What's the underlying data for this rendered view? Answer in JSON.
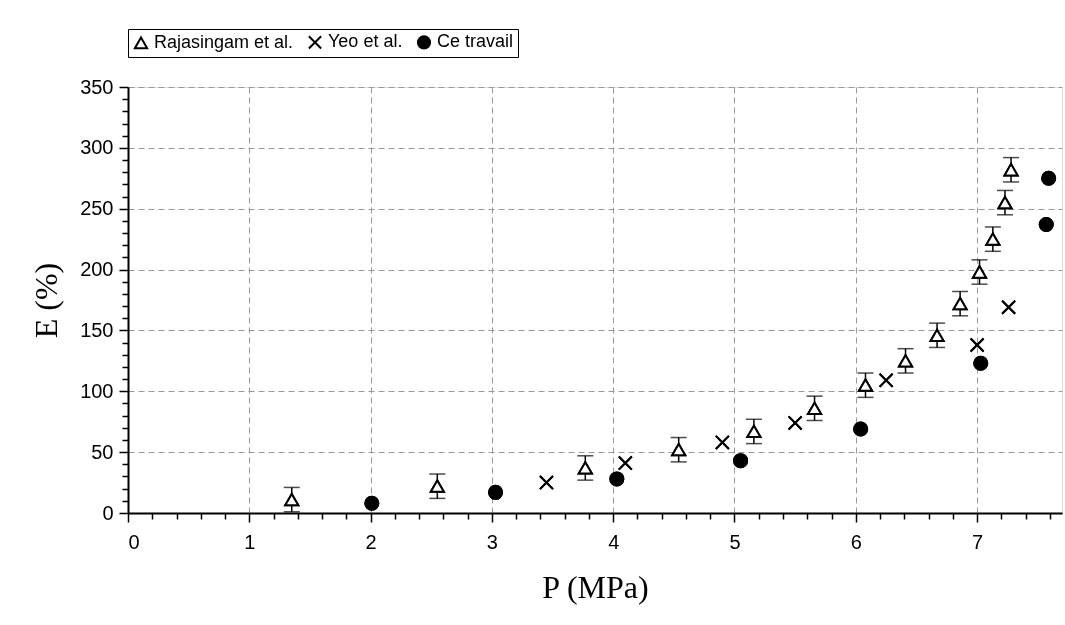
{
  "chart_data": {
    "type": "scatter",
    "xlabel": "P (MPa)",
    "ylabel": "E (%)",
    "xlim": [
      0,
      7.7
    ],
    "ylim": [
      0,
      350
    ],
    "grid": true,
    "legend": "top",
    "xticks": [
      0,
      {
        "value": 0.2,
        "label": null
      },
      {
        "value": 0.4,
        "label": null
      },
      {
        "value": 0.6,
        "label": null
      },
      {
        "value": 0.8,
        "label": null
      },
      1,
      {
        "value": 1.2,
        "label": null
      },
      {
        "value": 1.4,
        "label": null
      },
      {
        "value": 1.6,
        "label": null
      },
      {
        "value": 1.8,
        "label": null
      },
      2,
      {
        "value": 2.2,
        "label": null
      },
      {
        "value": 2.4,
        "label": null
      },
      {
        "value": 2.6,
        "label": null
      },
      {
        "value": 2.8,
        "label": null
      },
      3,
      {
        "value": 3.2,
        "label": null
      },
      {
        "value": 3.4,
        "label": null
      },
      {
        "value": 3.6,
        "label": null
      },
      {
        "value": 3.8,
        "label": null
      },
      4,
      {
        "value": 4.2,
        "label": null
      },
      {
        "value": 4.4,
        "label": null
      },
      {
        "value": 4.6,
        "label": null
      },
      {
        "value": 4.8,
        "label": null
      },
      5,
      {
        "value": 5.2,
        "label": null
      },
      {
        "value": 5.4,
        "label": null
      },
      {
        "value": 5.6,
        "label": null
      },
      {
        "value": 5.8,
        "label": null
      },
      6,
      {
        "value": 6.2,
        "label": null
      },
      {
        "value": 6.4,
        "label": null
      },
      {
        "value": 6.6,
        "label": null
      },
      {
        "value": 6.8,
        "label": null
      },
      7,
      {
        "value": 7.2,
        "label": null
      },
      {
        "value": 7.4,
        "label": null
      },
      {
        "value": 7.6,
        "label": null
      }
    ],
    "yticks": [
      0,
      {
        "value": 10,
        "label": null
      },
      {
        "value": 20,
        "label": null
      },
      {
        "value": 30,
        "label": null
      },
      {
        "value": 40,
        "label": null
      },
      50,
      {
        "value": 60,
        "label": null
      },
      {
        "value": 70,
        "label": null
      },
      {
        "value": 80,
        "label": null
      },
      {
        "value": 90,
        "label": null
      },
      100,
      {
        "value": 110,
        "label": null
      },
      {
        "value": 120,
        "label": null
      },
      {
        "value": 130,
        "label": null
      },
      {
        "value": 140,
        "label": null
      },
      150,
      {
        "value": 160,
        "label": null
      },
      {
        "value": 170,
        "label": null
      },
      {
        "value": 180,
        "label": null
      },
      {
        "value": 190,
        "label": null
      },
      200,
      {
        "value": 210,
        "label": null
      },
      {
        "value": 220,
        "label": null
      },
      {
        "value": 230,
        "label": null
      },
      {
        "value": 240,
        "label": null
      },
      250,
      {
        "value": 260,
        "label": null
      },
      {
        "value": 270,
        "label": null
      },
      {
        "value": 280,
        "label": null
      },
      {
        "value": 290,
        "label": null
      },
      300,
      {
        "value": 310,
        "label": null
      },
      {
        "value": 320,
        "label": null
      },
      {
        "value": 330,
        "label": null
      },
      {
        "value": 340,
        "label": null
      },
      350
    ],
    "series": [
      {
        "name": "Rajasingam et al.",
        "color": "#000000",
        "marker": "triangle",
        "x": [
          1.35,
          2.55,
          3.77,
          4.54,
          5.16,
          5.66,
          6.08,
          6.41,
          6.67,
          6.86,
          7.02,
          7.13,
          7.23,
          7.28
        ],
        "values": [
          11,
          22,
          37,
          52,
          67,
          86,
          105,
          125,
          146,
          172,
          198,
          225,
          255,
          282
        ],
        "errors": [
          10,
          10,
          10,
          10,
          10,
          10,
          10,
          10,
          10,
          10,
          10,
          10,
          10,
          10
        ]
      },
      {
        "name": "Yeo et al.",
        "color": "#000000",
        "marker": "cross",
        "x": [
          3.45,
          4.1,
          4.9,
          5.5,
          6.25,
          7.0,
          7.26
        ],
        "values": [
          25,
          41,
          58,
          74,
          109,
          138,
          169
        ]
      },
      {
        "name": "Ce travail",
        "color": "#000000",
        "marker": "circle",
        "x": [
          2.01,
          3.03,
          4.03,
          5.05,
          6.04,
          7.03,
          7.57,
          7.59
        ],
        "values": [
          8,
          17,
          28,
          43,
          69,
          123,
          237,
          275
        ]
      }
    ]
  }
}
